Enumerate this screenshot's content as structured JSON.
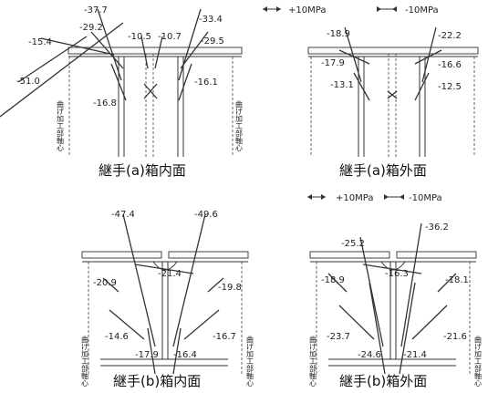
{
  "legend": {
    "tension": "+10MPa",
    "compression": "-10MPa"
  },
  "axis_label": "曲げ加工部軸心",
  "panels": [
    {
      "id": "a-inner",
      "caption": "継手(a)箱内面",
      "values": [
        "-37.7",
        "-15.4",
        "-29.2",
        "-10.5",
        "-10.7",
        "-33.4",
        "-29.5",
        "-51.0",
        "-16.8",
        "-16.1"
      ]
    },
    {
      "id": "a-outer",
      "caption": "継手(a)箱外面",
      "values": [
        "-18.9",
        "-22.2",
        "-17.9",
        "-16.6",
        "-13.1",
        "-12.5"
      ]
    },
    {
      "id": "b-inner",
      "caption": "継手(b)箱内面",
      "values": [
        "-47.4",
        "-49.6",
        "-21.4",
        "-20.9",
        "-19.8",
        "-14.6",
        "-16.7",
        "-17.9",
        "-16.4"
      ]
    },
    {
      "id": "b-outer",
      "caption": "継手(b)箱外面",
      "values": [
        "-36.2",
        "-25.2",
        "-16.3",
        "-18.9",
        "-18.1",
        "-23.7",
        "-21.6",
        "-24.6",
        "-21.4"
      ]
    }
  ]
}
